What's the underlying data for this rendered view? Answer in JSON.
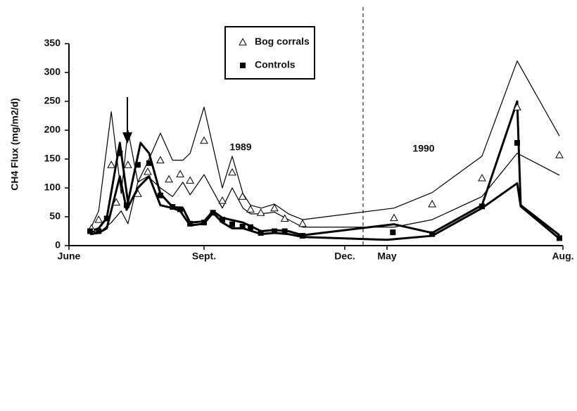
{
  "chart_data": {
    "type": "line",
    "y_label": "CH4 Flux (mg/m2/d)",
    "annotations": [
      "1989",
      "1990"
    ],
    "xlim": [
      0,
      14
    ],
    "xticks": [
      {
        "value": 0,
        "label": "June"
      },
      {
        "value": 3,
        "label": "Sept."
      },
      {
        "value": 6,
        "label": "Dec."
      },
      {
        "value": 11,
        "label": "May"
      },
      {
        "value": 14,
        "label": "Aug."
      }
    ],
    "ylim": [
      0,
      350
    ],
    "yticks": [
      0,
      50,
      100,
      150,
      200,
      250,
      300,
      350
    ],
    "legend": "top-center",
    "series": [
      {
        "name": "Bog corrals",
        "marker": "triangle",
        "color": "#000000",
        "x": [
          0.5,
          0.66,
          0.94,
          1.05,
          1.31,
          1.53,
          1.75,
          2.03,
          2.22,
          2.47,
          2.69,
          3.0,
          3.39,
          3.6,
          3.82,
          3.99,
          4.21,
          4.5,
          4.72,
          5.1,
          11.12,
          11.77,
          12.62,
          13.22,
          13.94
        ],
        "values": [
          30,
          45,
          140,
          75,
          140,
          90,
          128,
          148,
          115,
          124,
          113,
          182,
          78,
          127,
          85,
          63,
          57,
          65,
          47,
          38,
          48,
          72,
          117,
          240,
          157
        ]
      },
      {
        "name": "Controls",
        "marker": "square",
        "color": "#000000",
        "x": [
          0.47,
          0.66,
          0.84,
          1.13,
          1.28,
          1.53,
          1.78,
          2.03,
          2.3,
          2.47,
          2.69,
          3.0,
          3.19,
          3.39,
          3.6,
          3.82,
          3.99,
          4.21,
          4.5,
          4.72,
          5.1,
          11.1,
          11.77,
          12.62,
          13.22,
          13.94
        ],
        "values": [
          25,
          25,
          47,
          160,
          70,
          140,
          143,
          87,
          67,
          63,
          38,
          40,
          57,
          45,
          37,
          33,
          32,
          22,
          25,
          25,
          17,
          23,
          20,
          68,
          178,
          13
        ]
      },
      {
        "line": "thin",
        "color": "#000000",
        "x": [
          0.47,
          0.66,
          0.94,
          1.16,
          1.31,
          1.53,
          1.75,
          2.03,
          2.3,
          2.53,
          2.69,
          3.0,
          3.39,
          3.6,
          3.83,
          3.99,
          4.22,
          4.5,
          4.8,
          5.1,
          11.12,
          11.77,
          12.62,
          13.22,
          13.94
        ],
        "values": [
          28,
          60,
          232,
          90,
          200,
          110,
          145,
          195,
          148,
          148,
          160,
          240,
          100,
          155,
          90,
          70,
          65,
          72,
          55,
          45,
          65,
          92,
          155,
          320,
          190
        ]
      },
      {
        "line": "thin",
        "color": "#000000",
        "x": [
          0.47,
          0.66,
          0.94,
          1.16,
          1.31,
          1.53,
          1.75,
          2.03,
          2.3,
          2.53,
          2.69,
          3.0,
          3.39,
          3.6,
          3.83,
          3.99,
          4.22,
          4.5,
          4.8,
          5.1,
          11.12,
          11.77,
          12.62,
          13.22,
          13.94
        ],
        "values": [
          25,
          22,
          40,
          60,
          38,
          110,
          120,
          100,
          85,
          110,
          88,
          123,
          65,
          100,
          65,
          55,
          55,
          58,
          45,
          32,
          32,
          45,
          85,
          160,
          122
        ]
      },
      {
        "line": "thick",
        "color": "#000000",
        "x": [
          0.47,
          0.66,
          0.84,
          1.13,
          1.31,
          1.59,
          1.78,
          2.03,
          2.3,
          2.53,
          2.69,
          3.0,
          3.19,
          3.39,
          3.83,
          4.22,
          4.5,
          4.8,
          5.1,
          11.12,
          11.77,
          12.62,
          13.22,
          13.28,
          13.94
        ],
        "values": [
          25,
          30,
          48,
          178,
          75,
          178,
          160,
          90,
          67,
          65,
          40,
          42,
          60,
          48,
          40,
          25,
          27,
          25,
          18,
          37,
          22,
          70,
          250,
          70,
          18
        ]
      },
      {
        "line": "thick",
        "color": "#000000",
        "x": [
          0.47,
          0.66,
          0.84,
          1.13,
          1.28,
          1.53,
          1.78,
          2.03,
          2.3,
          2.47,
          2.69,
          3.0,
          3.19,
          3.39,
          3.6,
          3.83,
          4.22,
          4.5,
          4.8,
          5.1,
          11.0,
          11.77,
          12.62,
          13.22,
          13.28,
          13.94
        ],
        "values": [
          20,
          22,
          30,
          120,
          62,
          100,
          120,
          70,
          65,
          60,
          35,
          38,
          57,
          40,
          30,
          30,
          20,
          22,
          20,
          15,
          10,
          17,
          65,
          108,
          68,
          12
        ]
      }
    ]
  }
}
